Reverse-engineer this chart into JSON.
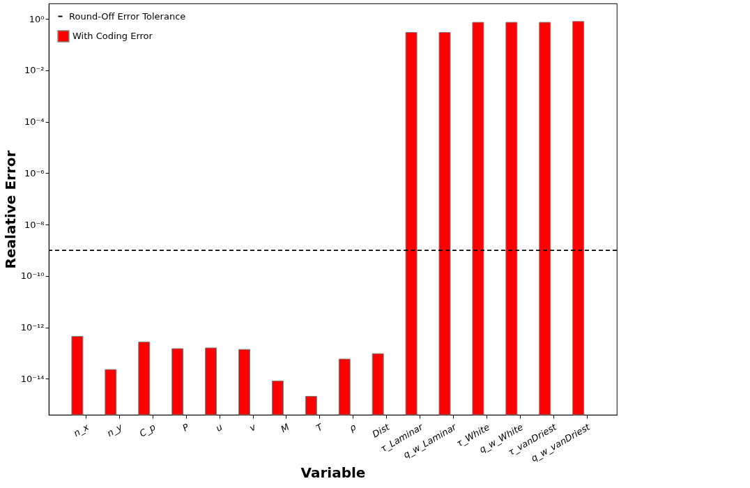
{
  "chart_data": {
    "type": "bar",
    "xlabel": "Variable",
    "ylabel": "Realative Error",
    "categories": [
      "n_x",
      "n_y",
      "C_p",
      "P",
      "u",
      "v",
      "M",
      "T",
      "ρ",
      "Dist",
      "τ_Laminar",
      "q_w_Laminar",
      "τ_White",
      "q_w_White",
      "τ_vanDriest",
      "q_w_vanDriest"
    ],
    "series": [
      {
        "name": "With Coding Error",
        "color": "#ff0000",
        "values": [
          4.5e-13,
          2.3e-14,
          2.7e-13,
          1.5e-13,
          1.6e-13,
          1.4e-13,
          8.3e-15,
          2.1e-15,
          5.9e-14,
          9.6e-14,
          0.3,
          0.3,
          0.74,
          0.74,
          0.74,
          0.8
        ]
      }
    ],
    "log": true,
    "ylim": [
      4e-16,
      4
    ],
    "yticks": [
      {
        "value": 1e-14,
        "label": "10⁻¹⁴"
      },
      {
        "value": 1e-12,
        "label": "10⁻¹²"
      },
      {
        "value": 1e-10,
        "label": "10⁻¹⁰"
      },
      {
        "value": 1e-08,
        "label": "10⁻⁸"
      },
      {
        "value": 1e-06,
        "label": "10⁻⁶"
      },
      {
        "value": 0.0001,
        "label": "10⁻⁴"
      },
      {
        "value": 0.01,
        "label": "10⁻²"
      },
      {
        "value": 1,
        "label": "10⁰"
      }
    ],
    "ref_lines": [
      {
        "axis": "y",
        "value": 1e-09,
        "label": "Round-Off Error Tolerance",
        "color": "#000000",
        "line_style": "dashed"
      }
    ],
    "grid": false,
    "legend": "top left"
  }
}
